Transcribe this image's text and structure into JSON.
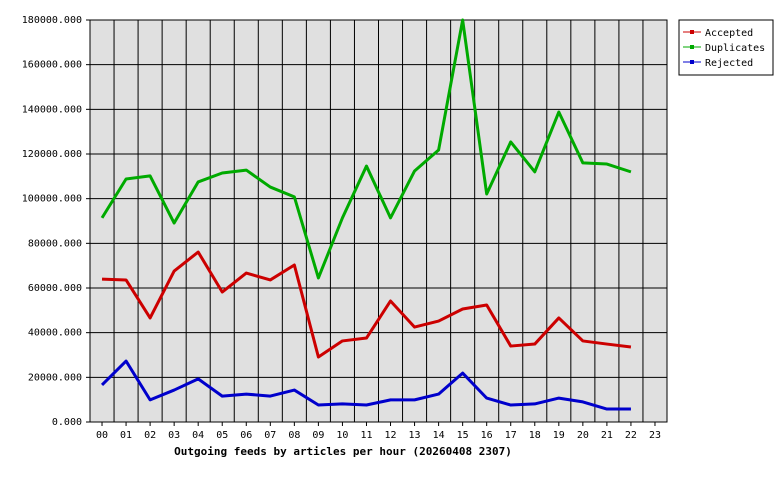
{
  "chart_data": {
    "type": "line",
    "xlabel": "Outgoing feeds by articles per hour (20260408 2307)",
    "categories": [
      "00",
      "01",
      "02",
      "03",
      "04",
      "05",
      "06",
      "07",
      "08",
      "09",
      "10",
      "11",
      "12",
      "13",
      "14",
      "15",
      "16",
      "17",
      "18",
      "19",
      "20",
      "21",
      "22",
      "23"
    ],
    "series": [
      {
        "name": "Accepted",
        "color": "#cc0000",
        "values": [
          64000,
          63600,
          46600,
          67600,
          76100,
          58200,
          66700,
          63600,
          70300,
          29100,
          36300,
          37600,
          54200,
          42500,
          45200,
          50600,
          52400,
          34000,
          34900,
          46600,
          36300,
          34900,
          33600,
          null
        ]
      },
      {
        "name": "Duplicates",
        "color": "#00aa00",
        "values": [
          91400,
          108800,
          110200,
          89100,
          107500,
          111500,
          112800,
          105200,
          100800,
          64500,
          91400,
          114600,
          91400,
          112400,
          121800,
          180000,
          102100,
          125400,
          112000,
          138800,
          116000,
          115500,
          112000,
          null
        ]
      },
      {
        "name": "Rejected",
        "color": "#0000cc",
        "values": [
          16600,
          27300,
          9900,
          14300,
          19300,
          11600,
          12500,
          11600,
          14300,
          7600,
          8100,
          7600,
          9900,
          9900,
          12500,
          21900,
          10700,
          7600,
          8100,
          10700,
          9000,
          5800,
          5800,
          null
        ]
      }
    ],
    "ylim": [
      0,
      180000
    ],
    "yticks": [
      {
        "value": 0,
        "label": "0.000"
      },
      {
        "value": 20000,
        "label": "20000.000"
      },
      {
        "value": 40000,
        "label": "40000.000"
      },
      {
        "value": 60000,
        "label": "60000.000"
      },
      {
        "value": 80000,
        "label": "80000.000"
      },
      {
        "value": 100000,
        "label": "100000.000"
      },
      {
        "value": 120000,
        "label": "120000.000"
      },
      {
        "value": 140000,
        "label": "140000.000"
      },
      {
        "value": 160000,
        "label": "160000.000"
      },
      {
        "value": 180000,
        "label": "180000.000"
      }
    ],
    "grid": true,
    "legend": "outside-top-right"
  }
}
